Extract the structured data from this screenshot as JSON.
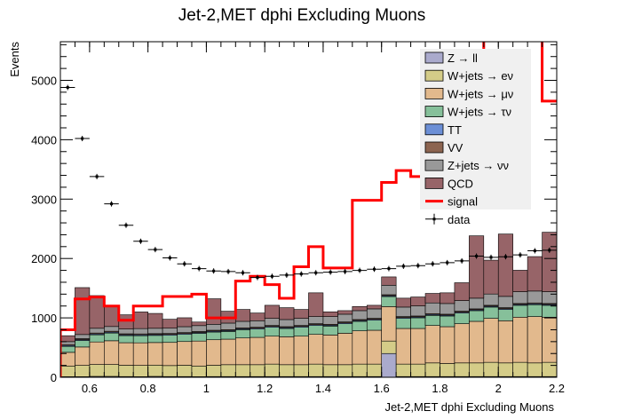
{
  "chart_data": {
    "type": "bar",
    "stacked": true,
    "title": "Jet-2,MET dphi Excluding Muons",
    "xlabel": "Jet-2,MET dphi Excluding Muons",
    "ylabel": "Events",
    "xlim": [
      0.5,
      2.2
    ],
    "ylim": [
      0,
      5650
    ],
    "grid": false,
    "legend_position": "top-right",
    "x_ticks": [
      0.6,
      0.8,
      1,
      1.2,
      1.4,
      1.6,
      1.8,
      2,
      2.2
    ],
    "x_tick_labels": [
      "0.6",
      "0.8",
      "1",
      "1.2",
      "1.4",
      "1.6",
      "1.8",
      "2",
      "2.2"
    ],
    "y_ticks": [
      0,
      1000,
      2000,
      3000,
      4000,
      5000
    ],
    "y_tick_labels": [
      "0",
      "1000",
      "2000",
      "3000",
      "4000",
      "5000"
    ],
    "bin_edges": [
      0.5,
      0.55,
      0.6,
      0.65,
      0.7,
      0.75,
      0.8,
      0.85,
      0.9,
      0.95,
      1.0,
      1.05,
      1.1,
      1.15,
      1.2,
      1.25,
      1.3,
      1.35,
      1.4,
      1.45,
      1.5,
      1.55,
      1.6,
      1.65,
      1.7,
      1.75,
      1.8,
      1.85,
      1.9,
      1.95,
      2.0,
      2.05,
      2.1,
      2.15,
      2.2
    ],
    "series": [
      {
        "name": "Z → ll",
        "key": "zll",
        "color": "#aaaacc",
        "values": [
          10,
          10,
          15,
          15,
          12,
          10,
          15,
          12,
          12,
          10,
          12,
          12,
          12,
          12,
          12,
          12,
          12,
          12,
          12,
          12,
          12,
          12,
          400,
          12,
          12,
          12,
          12,
          12,
          12,
          12,
          12,
          12,
          12,
          12
        ]
      },
      {
        "name": "W+jets → eν",
        "key": "wenu",
        "color": "#d4cc88",
        "values": [
          180,
          190,
          200,
          200,
          190,
          190,
          190,
          185,
          190,
          180,
          190,
          200,
          200,
          200,
          210,
          200,
          200,
          210,
          200,
          200,
          210,
          210,
          210,
          210,
          210,
          230,
          220,
          230,
          230,
          240,
          230,
          240,
          230,
          240
        ]
      },
      {
        "name": "W+jets → μν",
        "key": "wmunu",
        "color": "#e2b98d",
        "values": [
          230,
          310,
          380,
          400,
          380,
          380,
          380,
          390,
          400,
          420,
          430,
          430,
          450,
          460,
          470,
          470,
          480,
          500,
          500,
          530,
          560,
          570,
          580,
          600,
          600,
          630,
          620,
          660,
          700,
          740,
          710,
          760,
          780,
          760
        ]
      },
      {
        "name": "W+jets → τν",
        "key": "wtaunu",
        "color": "#86c09a",
        "values": [
          100,
          110,
          120,
          130,
          120,
          120,
          120,
          120,
          120,
          130,
          130,
          130,
          140,
          140,
          150,
          140,
          150,
          150,
          150,
          160,
          160,
          170,
          170,
          170,
          180,
          170,
          180,
          180,
          180,
          190,
          190,
          200,
          200,
          200
        ]
      },
      {
        "name": "TT",
        "key": "tt",
        "color": "#6c8fd6",
        "values": [
          15,
          15,
          15,
          15,
          15,
          15,
          15,
          15,
          15,
          15,
          15,
          15,
          15,
          15,
          15,
          15,
          15,
          15,
          15,
          15,
          15,
          15,
          15,
          15,
          15,
          15,
          15,
          15,
          15,
          15,
          15,
          15,
          15,
          15
        ]
      },
      {
        "name": "VV",
        "key": "vv",
        "color": "#8c6450",
        "values": [
          15,
          15,
          15,
          15,
          15,
          15,
          15,
          15,
          15,
          15,
          15,
          15,
          15,
          15,
          15,
          15,
          15,
          15,
          15,
          15,
          15,
          15,
          15,
          15,
          15,
          15,
          15,
          15,
          15,
          15,
          15,
          15,
          15,
          15
        ]
      },
      {
        "name": "Z+jets → νν",
        "key": "znunu",
        "color": "#999999",
        "values": [
          50,
          70,
          80,
          80,
          80,
          90,
          90,
          90,
          100,
          100,
          100,
          110,
          110,
          110,
          120,
          120,
          120,
          120,
          130,
          130,
          150,
          160,
          160,
          160,
          170,
          180,
          180,
          180,
          180,
          190,
          190,
          200,
          200,
          200
        ]
      },
      {
        "name": "QCD",
        "key": "qcd",
        "color": "#976468",
        "values": [
          100,
          790,
          550,
          340,
          240,
          280,
          250,
          150,
          150,
          60,
          430,
          200,
          200,
          130,
          220,
          200,
          150,
          400,
          80,
          60,
          70,
          60,
          140,
          150,
          150,
          160,
          180,
          300,
          1050,
          570,
          1050,
          360,
          580,
          1000
        ]
      }
    ],
    "signal": {
      "name": "signal",
      "color": "#ff0000",
      "values": [
        800,
        1320,
        1350,
        1200,
        960,
        1200,
        1200,
        1360,
        1360,
        1400,
        1000,
        1000,
        1620,
        1700,
        1560,
        1330,
        1860,
        2200,
        1840,
        1840,
        2980,
        2980,
        3280,
        3480,
        3380,
        3100,
        3100,
        3100,
        3100,
        5800,
        5800,
        6100,
        6100,
        4650
      ]
    },
    "data_points": {
      "name": "data",
      "x": [
        0.525,
        0.575,
        0.625,
        0.675,
        0.725,
        0.775,
        0.825,
        0.875,
        0.925,
        0.975,
        1.025,
        1.075,
        1.125,
        1.175,
        1.225,
        1.275,
        1.325,
        1.375,
        1.425,
        1.475,
        1.525,
        1.575,
        1.625,
        1.675,
        1.725,
        1.775,
        1.825,
        1.875,
        1.925,
        1.975,
        2.025,
        2.075,
        2.125,
        2.175
      ],
      "y": [
        4880,
        4020,
        3380,
        2920,
        2560,
        2290,
        2150,
        2010,
        1910,
        1830,
        1790,
        1780,
        1760,
        1680,
        1700,
        1720,
        1740,
        1760,
        1770,
        1780,
        1800,
        1820,
        1830,
        1870,
        1880,
        1910,
        1930,
        1960,
        2040,
        2020,
        2030,
        2060,
        2130,
        2140
      ]
    }
  }
}
